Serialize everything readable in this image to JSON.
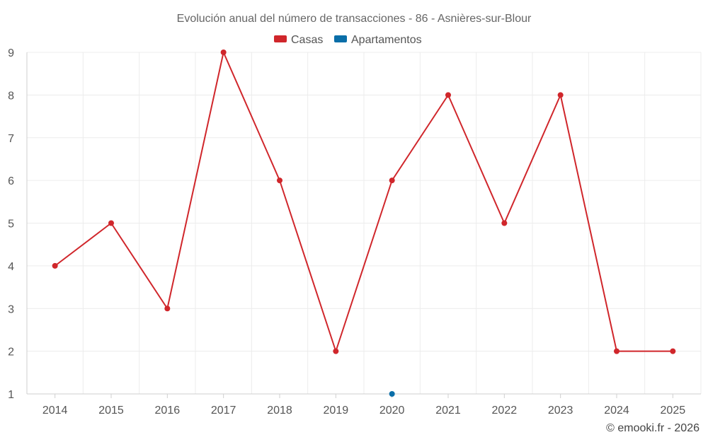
{
  "chart_data": {
    "type": "line",
    "title": "Evolución anual del número de transacciones - 86 - Asnières-sur-Blour",
    "categories": [
      "2014",
      "2015",
      "2016",
      "2017",
      "2018",
      "2019",
      "2020",
      "2021",
      "2022",
      "2023",
      "2024",
      "2025"
    ],
    "series": [
      {
        "name": "Casas",
        "color": "#d0262b",
        "values": [
          4,
          5,
          3,
          9,
          6,
          2,
          6,
          8,
          5,
          8,
          2,
          2
        ]
      },
      {
        "name": "Apartamentos",
        "color": "#0a6ea8",
        "values": [
          null,
          null,
          null,
          null,
          null,
          null,
          1,
          null,
          null,
          null,
          null,
          null
        ]
      }
    ],
    "ylim": [
      1,
      9
    ],
    "yticks": [
      "1",
      "2",
      "3",
      "4",
      "5",
      "6",
      "7",
      "8",
      "9"
    ],
    "legend_position": "top-center",
    "grid": true,
    "xlabel": "",
    "ylabel": ""
  },
  "credit": "© emooki.fr - 2026"
}
